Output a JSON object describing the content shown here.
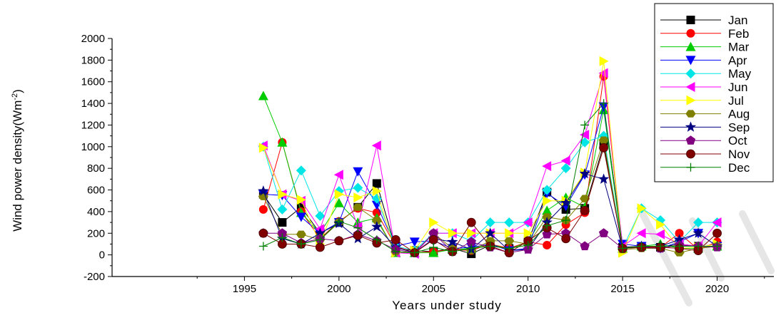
{
  "chart_data": {
    "type": "line",
    "xlabel": "Years under study",
    "ylabel": "Wind power density(W",
    "ylabel_unit": "m",
    "ylabel_exp": "-2",
    "ylabel_close": ")",
    "xlim": [
      1988,
      2023
    ],
    "ylim": [
      -200,
      2000
    ],
    "x_ticks": [
      1995,
      2000,
      2005,
      2010,
      2015,
      2020
    ],
    "y_ticks": [
      -200,
      0,
      200,
      400,
      600,
      800,
      1000,
      1200,
      1400,
      1600,
      1800,
      2000
    ],
    "legend_position": "top-right",
    "x": [
      1996,
      1997,
      1998,
      1999,
      2000,
      2001,
      2002,
      2003,
      2004,
      2005,
      2006,
      2007,
      2008,
      2009,
      2010,
      2011,
      2012,
      2013,
      2014,
      2015,
      2016,
      2017,
      2018,
      2019,
      2020
    ],
    "series": [
      {
        "name": "Jan",
        "color": "#000000",
        "marker": "square",
        "values": [
          560,
          300,
          440,
          200,
          300,
          440,
          660,
          60,
          40,
          30,
          60,
          10,
          90,
          60,
          120,
          580,
          420,
          430,
          1020,
          70,
          80,
          70,
          100,
          80,
          80
        ]
      },
      {
        "name": "Feb",
        "color": "#ff0000",
        "marker": "circle",
        "values": [
          420,
          1040,
          400,
          150,
          310,
          430,
          390,
          80,
          20,
          30,
          50,
          40,
          100,
          60,
          120,
          90,
          280,
          390,
          1650,
          60,
          80,
          70,
          200,
          50,
          120
        ]
      },
      {
        "name": "Mar",
        "color": "#00cc00",
        "marker": "triangle-up",
        "values": [
          1470,
          1040,
          390,
          200,
          480,
          300,
          340,
          20,
          20,
          20,
          50,
          60,
          100,
          50,
          120,
          410,
          530,
          440,
          1340,
          60,
          80,
          100,
          60,
          60,
          80
        ]
      },
      {
        "name": "Apr",
        "color": "#0000ff",
        "marker": "triangle-down",
        "values": [
          560,
          550,
          350,
          200,
          300,
          770,
          460,
          80,
          120,
          130,
          60,
          70,
          100,
          40,
          60,
          570,
          450,
          740,
          1370,
          100,
          80,
          60,
          120,
          200,
          80
        ]
      },
      {
        "name": "May",
        "color": "#00e5e5",
        "marker": "diamond",
        "values": [
          1000,
          420,
          780,
          360,
          590,
          620,
          520,
          80,
          40,
          200,
          200,
          130,
          300,
          300,
          300,
          600,
          800,
          1040,
          1100,
          60,
          430,
          320,
          120,
          300,
          300
        ]
      },
      {
        "name": "Jun",
        "color": "#ff00ff",
        "marker": "triangle-left",
        "values": [
          1010,
          560,
          500,
          240,
          740,
          260,
          1010,
          20,
          10,
          200,
          200,
          200,
          200,
          200,
          300,
          820,
          870,
          1110,
          1680,
          80,
          200,
          190,
          100,
          80,
          300
        ]
      },
      {
        "name": "Jul",
        "color": "#ffff00",
        "marker": "triangle-right",
        "values": [
          990,
          560,
          510,
          100,
          560,
          530,
          590,
          20,
          40,
          300,
          200,
          200,
          200,
          200,
          200,
          500,
          500,
          760,
          1790,
          20,
          430,
          280,
          60,
          70,
          100
        ]
      },
      {
        "name": "Aug",
        "color": "#808000",
        "marker": "hexagon",
        "values": [
          540,
          190,
          190,
          140,
          300,
          440,
          320,
          30,
          20,
          200,
          60,
          40,
          130,
          130,
          100,
          350,
          320,
          520,
          1060,
          50,
          60,
          60,
          20,
          60,
          80
        ]
      },
      {
        "name": "Sep",
        "color": "#000080",
        "marker": "star",
        "values": [
          590,
          150,
          100,
          200,
          290,
          150,
          260,
          70,
          20,
          150,
          120,
          50,
          200,
          40,
          50,
          300,
          480,
          750,
          700,
          60,
          80,
          80,
          140,
          200,
          80
        ]
      },
      {
        "name": "Oct",
        "color": "#800080",
        "marker": "pentagon",
        "values": [
          200,
          200,
          110,
          150,
          130,
          190,
          130,
          50,
          20,
          200,
          30,
          120,
          70,
          20,
          50,
          190,
          200,
          80,
          200,
          60,
          70,
          60,
          90,
          80,
          70
        ]
      },
      {
        "name": "Nov",
        "color": "#800000",
        "marker": "sphere",
        "values": [
          200,
          100,
          100,
          70,
          130,
          180,
          110,
          140,
          20,
          140,
          30,
          300,
          80,
          20,
          130,
          250,
          150,
          410,
          990,
          60,
          70,
          70,
          60,
          40,
          200
        ]
      },
      {
        "name": "Dec",
        "color": "#008000",
        "marker": "plus",
        "values": [
          80,
          160,
          100,
          140,
          310,
          250,
          140,
          30,
          20,
          70,
          30,
          60,
          80,
          60,
          90,
          270,
          320,
          1200,
          1400,
          60,
          80,
          80,
          80,
          80,
          80
        ]
      }
    ]
  }
}
